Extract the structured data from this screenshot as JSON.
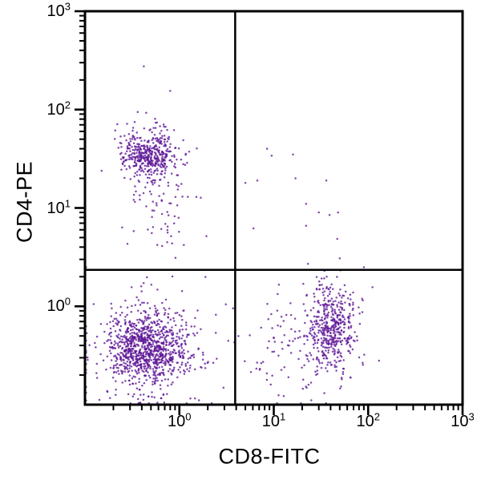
{
  "chart_data": {
    "type": "scatter",
    "title": "",
    "xlabel": "CD8-FITC",
    "ylabel": "CD4-PE",
    "x_scale": "log",
    "y_scale": "log",
    "xlim": [
      0.1,
      1000
    ],
    "ylim": [
      0.1,
      1000
    ],
    "x_tick_exponents": [
      0,
      1,
      2,
      3
    ],
    "y_tick_exponents": [
      0,
      1,
      2,
      3
    ],
    "grid": false,
    "legend": false,
    "background_color": "#ffffff",
    "axis_color": "#000000",
    "gate_color": "#000000",
    "marker": {
      "color": "#5c1496",
      "radius": 1.25,
      "opacity": 0.78
    },
    "quadrant_gates": {
      "x": 3.9,
      "y": 2.35
    },
    "seed": 7,
    "populations": [
      {
        "name": "CD4-positive lymphocytes (upper-left)",
        "n": 420,
        "center_log10": [
          -0.32,
          1.55
        ],
        "sigma_log10": [
          0.14,
          0.13
        ]
      },
      {
        "name": "CD4-positive downward tail",
        "n": 90,
        "center_log10": [
          -0.25,
          1.12
        ],
        "sigma_log10": [
          0.18,
          0.3
        ]
      },
      {
        "name": "double-negative cells (lower-left)",
        "n": 850,
        "center_log10": [
          -0.35,
          -0.42
        ],
        "sigma_log10": [
          0.21,
          0.17
        ]
      },
      {
        "name": "double-negative diffuse halo",
        "n": 230,
        "center_log10": [
          -0.3,
          -0.4
        ],
        "sigma_log10": [
          0.34,
          0.3
        ]
      },
      {
        "name": "CD8-positive lymphocytes (lower-right)",
        "n": 430,
        "center_log10": [
          1.62,
          -0.22
        ],
        "sigma_log10": [
          0.13,
          0.23
        ]
      },
      {
        "name": "CD8-positive diffuse tail",
        "n": 130,
        "center_log10": [
          1.3,
          -0.38
        ],
        "sigma_log10": [
          0.36,
          0.28
        ]
      }
    ],
    "sparse_points": [
      [
        8.5,
        40
      ],
      [
        9.5,
        34
      ],
      [
        16,
        35
      ],
      [
        5,
        18
      ],
      [
        6.7,
        19
      ],
      [
        17,
        20
      ],
      [
        36,
        19
      ],
      [
        22,
        11
      ],
      [
        30,
        9
      ],
      [
        39,
        8.5
      ],
      [
        48,
        9
      ],
      [
        22,
        6.6
      ],
      [
        6.1,
        6.2
      ],
      [
        23,
        2.7
      ],
      [
        0.42,
        275
      ],
      [
        0.8,
        155
      ],
      [
        0.22,
        71
      ]
    ]
  }
}
